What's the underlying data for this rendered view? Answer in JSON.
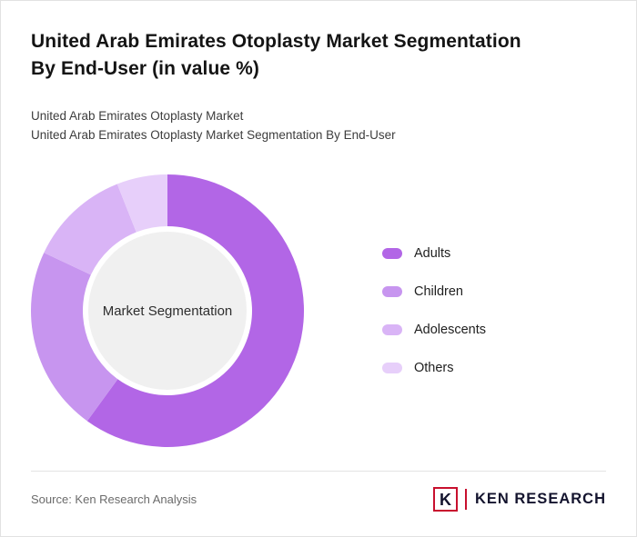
{
  "page": {
    "title_line1": "United Arab Emirates Otoplasty Market Segmentation",
    "title_line2": "By End-User (in value %)",
    "subtitle1": "United Arab Emirates Otoplasty Market",
    "subtitle2": "United Arab Emirates Otoplasty Market Segmentation By End-User",
    "source": "Source: Ken Research Analysis"
  },
  "logo": {
    "emblem_letter": "K",
    "brand_text": "KEN RESEARCH",
    "accent_color": "#C8102E",
    "text_color": "#14142e"
  },
  "chart_data": {
    "type": "pie",
    "subtype": "donut",
    "title": "United Arab Emirates Otoplasty Market Segmentation By End-User (in value %)",
    "center_label": "Market Segmentation",
    "legend_position": "right",
    "start_angle_deg": -90,
    "direction": "clockwise",
    "center_fill": "#f0f0f0",
    "segments": [
      {
        "label": "Adults",
        "value": 60,
        "color": "#B266E6"
      },
      {
        "label": "Children",
        "value": 22,
        "color": "#C795EF"
      },
      {
        "label": "Adolescents",
        "value": 12,
        "color": "#D9B4F6"
      },
      {
        "label": "Others",
        "value": 6,
        "color": "#E7CFFA"
      }
    ]
  }
}
